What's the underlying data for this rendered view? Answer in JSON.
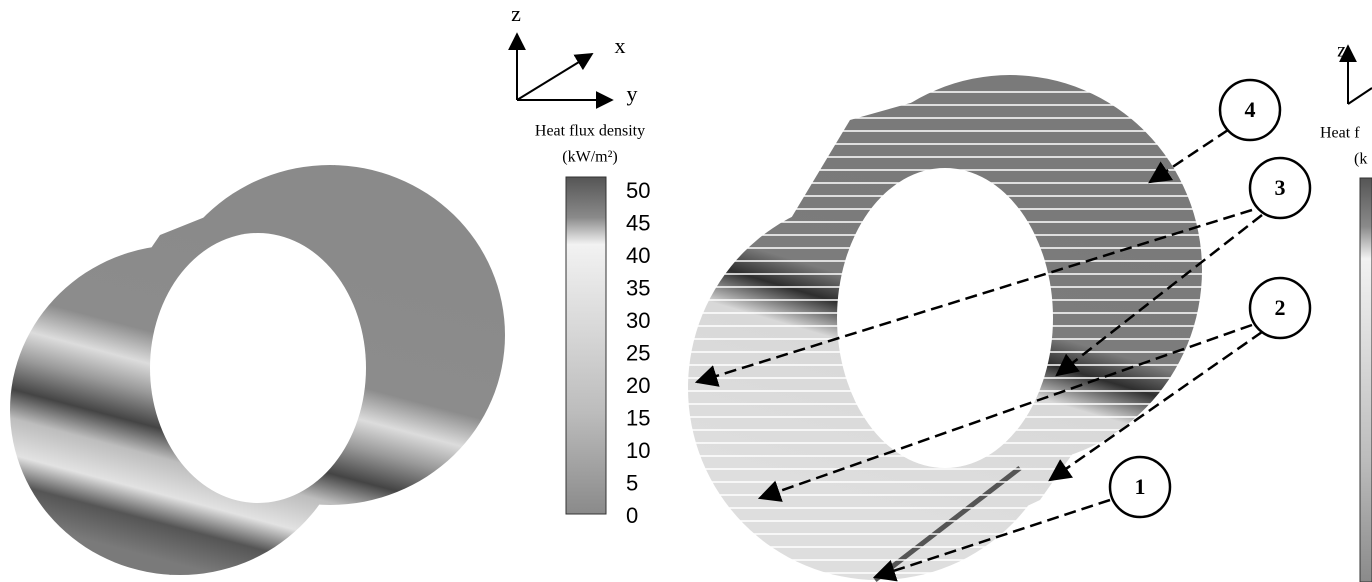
{
  "left_figure": {
    "axes": {
      "z": "z",
      "x": "x",
      "y": "y"
    },
    "colorbar": {
      "title": "Heat flux density",
      "unit": "(kW/m²)",
      "ticks": [
        50,
        45,
        40,
        35,
        30,
        25,
        20,
        15,
        10,
        5,
        0
      ]
    }
  },
  "right_figure": {
    "callouts": [
      "1",
      "2",
      "3",
      "4"
    ]
  },
  "cropped_figure": {
    "axes": {
      "z": "z"
    },
    "colorbar": {
      "title": "Heat f",
      "unit": "(k"
    }
  }
}
